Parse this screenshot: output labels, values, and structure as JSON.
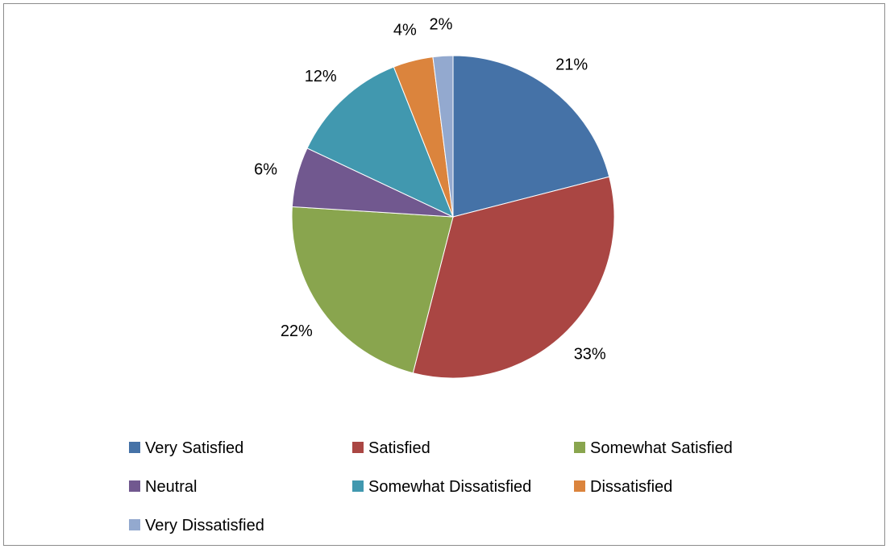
{
  "chart_data": {
    "type": "pie",
    "categories": [
      "Very Satisfied",
      "Satisfied",
      "Somewhat Satisfied",
      "Neutral",
      "Somewhat Dissatisfied",
      "Dissatisfied",
      "Very Dissatisfied"
    ],
    "values": [
      21,
      33,
      22,
      6,
      12,
      4,
      2
    ],
    "labels": [
      "21%",
      "33%",
      "22%",
      "6%",
      "12%",
      "4%",
      "2%"
    ],
    "colors": [
      "#4572a7",
      "#aa4643",
      "#89a54e",
      "#71588f",
      "#4198af",
      "#db843d",
      "#93a9cf"
    ],
    "legend_position": "bottom",
    "title": ""
  }
}
